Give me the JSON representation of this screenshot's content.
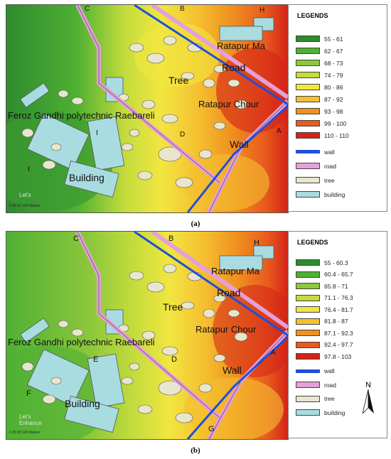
{
  "panels": [
    {
      "caption": "(a)",
      "legend_title": "LEGENDS",
      "classes": [
        {
          "label": "55 - 61",
          "color": "#2e8b2e"
        },
        {
          "label": "62 - 67",
          "color": "#4fb033"
        },
        {
          "label": "68 - 73",
          "color": "#8cc83c"
        },
        {
          "label": "74 - 79",
          "color": "#c3dc3c"
        },
        {
          "label": "80 - 86",
          "color": "#f2e640"
        },
        {
          "label": "87 - 92",
          "color": "#f5c030"
        },
        {
          "label": "93 - 98",
          "color": "#f09020"
        },
        {
          "label": "99 - 100",
          "color": "#e85a1e"
        },
        {
          "label": "110 - 110",
          "color": "#d42318"
        }
      ],
      "features": [
        {
          "label": "wall",
          "color": "#1e4fd8",
          "icon": "line"
        },
        {
          "label": "road",
          "color": "#e4a0d8",
          "icon": "box"
        },
        {
          "label": "tree",
          "color": "#e8e6cc",
          "icon": "box"
        },
        {
          "label": "building",
          "color": "#a8dce0",
          "icon": "box"
        }
      ],
      "map_labels": {
        "ratapur_ma": "Ratapur Ma",
        "road": "Road",
        "tree": "Tree",
        "ratapur_chour": "Ratapur Chour",
        "feroz": "Feroz Gandhi polytechnic Raebareli",
        "wall": "Wall",
        "building": "Building",
        "pt_a": "A",
        "pt_b": "B",
        "pt_c": "C",
        "pt_d": "D",
        "pt_h": "H",
        "pt_i1": "I",
        "pt_i2": "I"
      },
      "scale": "0   25   50          100 Meters",
      "watermark": "Let's"
    },
    {
      "caption": "(b)",
      "legend_title": "LEGENDS",
      "classes": [
        {
          "label": "55 - 60.3",
          "color": "#2e8b2e"
        },
        {
          "label": "60.4 - 65.7",
          "color": "#4fb033"
        },
        {
          "label": "65.8 - 71",
          "color": "#8cc83c"
        },
        {
          "label": "71.1 - 76.3",
          "color": "#c3dc3c"
        },
        {
          "label": "76.4 - 81.7",
          "color": "#f2e640"
        },
        {
          "label": "81.8 - 87",
          "color": "#f5c030"
        },
        {
          "label": "87.1 - 92.3",
          "color": "#f09020"
        },
        {
          "label": "92.4 - 97.7",
          "color": "#e85a1e"
        },
        {
          "label": "97.8 - 103",
          "color": "#d42318"
        }
      ],
      "features": [
        {
          "label": "wall",
          "color": "#1e4fd8",
          "icon": "line"
        },
        {
          "label": "road",
          "color": "#e4a0d8",
          "icon": "box"
        },
        {
          "label": "tree",
          "color": "#e8e6cc",
          "icon": "box"
        },
        {
          "label": "building",
          "color": "#a8dce0",
          "icon": "box"
        }
      ],
      "map_labels": {
        "ratapur_ma": "Ratapur Ma",
        "road": "Road",
        "tree": "Tree",
        "ratapur_chour": "Ratapur Chour",
        "feroz": "Feroz Gandhi polytechnic Raebareli",
        "wall": "Wall",
        "building": "Building",
        "pt_a": "A",
        "pt_b": "B",
        "pt_c": "C",
        "pt_d": "D",
        "pt_e": "E",
        "pt_f": "F",
        "pt_g": "G",
        "pt_h": "H"
      },
      "north": "N",
      "scale": "0   25   50          100 Meters",
      "watermark": "Let's Enhance"
    }
  ]
}
